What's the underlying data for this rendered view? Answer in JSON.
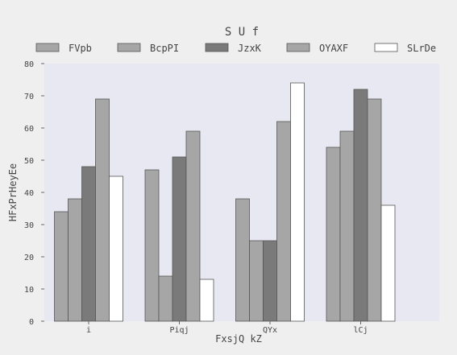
{
  "chart_data": {
    "type": "bar",
    "title": "S U f",
    "xlabel": "FxsjQ kZ",
    "ylabel": "HFxPrHeyEe",
    "categories": [
      "i",
      "Piqj",
      "QYx",
      "lCj"
    ],
    "series": [
      {
        "name": "FVpb",
        "color": "#a6a6a6",
        "values": [
          34,
          47,
          38,
          54
        ]
      },
      {
        "name": "BcpPI",
        "color": "#a6a6a6",
        "values": [
          38,
          14,
          25,
          59
        ]
      },
      {
        "name": "JzxK",
        "color": "#7a7a7a",
        "values": [
          48,
          51,
          25,
          72
        ]
      },
      {
        "name": "OYAXF",
        "color": "#a6a6a6",
        "values": [
          69,
          59,
          62,
          69
        ]
      },
      {
        "name": "SLrDe",
        "color": "#ffffff",
        "values": [
          45,
          13,
          74,
          36
        ]
      }
    ],
    "ylim": [
      0,
      80
    ],
    "yticks": [
      0,
      10,
      20,
      30,
      40,
      50,
      60,
      70,
      80
    ],
    "grid": false,
    "legend": "top"
  },
  "colors": {
    "page_background": "#efefef",
    "plot_background": "#e8e8f2",
    "bar_edge": "#555555",
    "text": "#444444"
  }
}
